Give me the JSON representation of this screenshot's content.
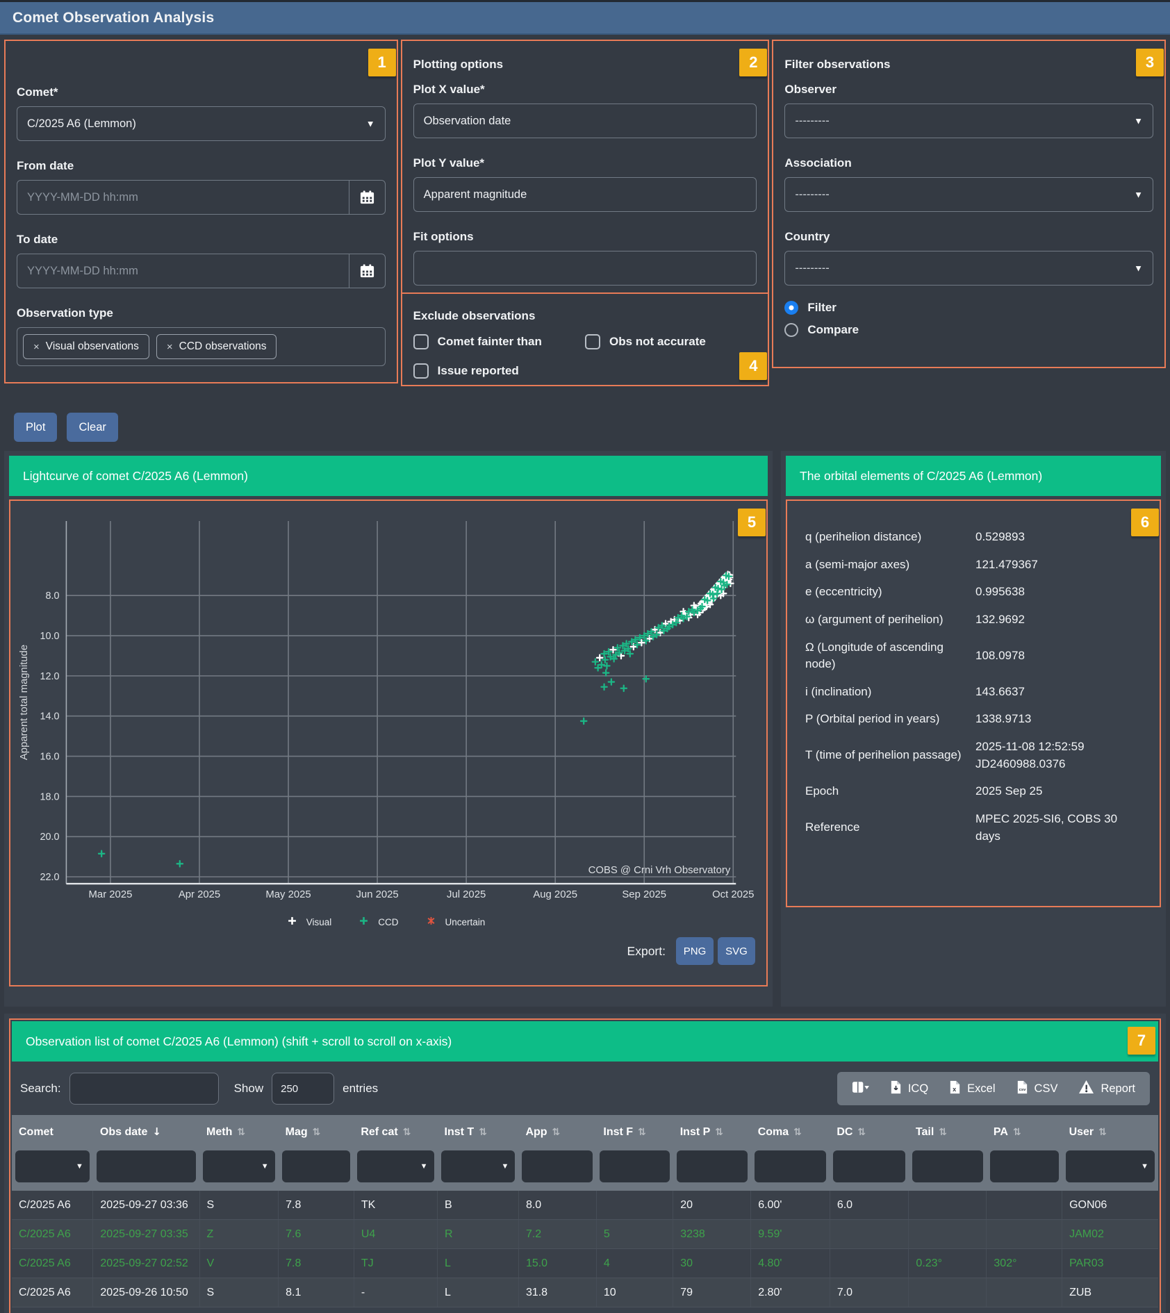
{
  "title": "Comet Observation Analysis",
  "colors": {
    "header_blue": "#47688f",
    "accent_orange": "#e87b57",
    "badge_yellow": "#efae16",
    "green_bar": "#0dbd87",
    "button_blue": "#4a6b9d",
    "ccd_row_green": "#3ea24b",
    "visual_marker": "#ffffff",
    "ccd_marker": "#1cb585",
    "uncertain_marker": "#e0543f"
  },
  "panels": {
    "comet": {
      "badge": "1",
      "comet_label": "Comet*",
      "comet_value": "C/2025 A6 (Lemmon)",
      "from_label": "From date",
      "to_label": "To date",
      "date_placeholder": "YYYY-MM-DD hh:mm",
      "obs_type_label": "Observation type",
      "tags": [
        "Visual observations",
        "CCD observations"
      ]
    },
    "plotting": {
      "badge": "2",
      "title": "Plotting options",
      "x_label": "Plot X value*",
      "x_value": "Observation date",
      "y_label": "Plot Y value*",
      "y_value": "Apparent magnitude",
      "fit_label": "Fit options",
      "fit_value": ""
    },
    "exclude": {
      "badge": "4",
      "title": "Exclude observations",
      "checkboxes": [
        {
          "label": "Comet fainter than",
          "checked": false
        },
        {
          "label": "Obs not accurate",
          "checked": false
        },
        {
          "label": "Issue reported",
          "checked": false
        }
      ]
    },
    "filter": {
      "badge": "3",
      "title": "Filter observations",
      "fields": [
        {
          "label": "Observer",
          "value": "---------"
        },
        {
          "label": "Association",
          "value": "---------"
        },
        {
          "label": "Country",
          "value": "---------"
        }
      ],
      "radios": [
        {
          "label": "Filter",
          "checked": true
        },
        {
          "label": "Compare",
          "checked": false
        }
      ]
    }
  },
  "actions": {
    "plot": "Plot",
    "clear": "Clear"
  },
  "lightcurve": {
    "badge": "5",
    "header": "Lightcurve of comet C/2025 A6 (Lemmon)",
    "watermark": "COBS @ Crni Vrh Observatory",
    "export_label": "Export:",
    "export_buttons": [
      "PNG",
      "SVG"
    ]
  },
  "chart_data": {
    "type": "scatter",
    "title": "Lightcurve of comet C/2025 A6 (Lemmon)",
    "ylabel": "Apparent total magnitude",
    "y_ticks": [
      8,
      10,
      12,
      14,
      16,
      18,
      20,
      22
    ],
    "y_range": [
      6.1,
      22.3
    ],
    "y_inverted": true,
    "x_tick_labels": [
      "Mar 2025",
      "Apr 2025",
      "May 2025",
      "Jun 2025",
      "Jul 2025",
      "Aug 2025",
      "Sep 2025",
      "Oct 2025"
    ],
    "x_unit": "month index, 0 = Mar 2025 tick",
    "grid": true,
    "legend_position": "bottom",
    "legend": [
      {
        "name": "Visual",
        "color": "#ffffff",
        "marker": "plus"
      },
      {
        "name": "CCD",
        "color": "#1cb585",
        "marker": "plus"
      },
      {
        "name": "Uncertain",
        "color": "#e0543f",
        "marker": "star"
      }
    ],
    "series": [
      {
        "name": "Visual",
        "points": [
          [
            5.5,
            11.1
          ],
          [
            5.65,
            10.7
          ],
          [
            5.74,
            11.0
          ],
          [
            5.88,
            10.55
          ],
          [
            5.97,
            10.35
          ],
          [
            6.06,
            10.15
          ],
          [
            6.12,
            9.7
          ],
          [
            6.18,
            9.85
          ],
          [
            6.24,
            9.4
          ],
          [
            6.3,
            9.3
          ],
          [
            6.34,
            9.2
          ],
          [
            6.4,
            9.25
          ],
          [
            6.46,
            8.9
          ],
          [
            6.52,
            8.95
          ],
          [
            6.58,
            8.6
          ],
          [
            6.62,
            8.5
          ],
          [
            6.64,
            8.4
          ],
          [
            6.66,
            8.3
          ],
          [
            6.67,
            8.45
          ],
          [
            6.69,
            8.35
          ],
          [
            6.7,
            8.1
          ],
          [
            6.72,
            8.0
          ],
          [
            6.73,
            8.15
          ],
          [
            6.75,
            8.05
          ],
          [
            6.76,
            7.8
          ],
          [
            6.78,
            7.7
          ],
          [
            6.79,
            7.85
          ],
          [
            6.81,
            7.75
          ],
          [
            6.82,
            7.5
          ],
          [
            6.84,
            7.4
          ],
          [
            6.85,
            7.55
          ],
          [
            6.87,
            7.45
          ],
          [
            6.88,
            7.2
          ],
          [
            6.9,
            7.1
          ],
          [
            6.91,
            7.25
          ],
          [
            6.93,
            7.15
          ],
          [
            6.94,
            6.95
          ],
          [
            6.88,
            7.6
          ],
          [
            6.92,
            7.35
          ],
          [
            6.85,
            7.8
          ],
          [
            6.89,
            7.9
          ],
          [
            6.91,
            7.05
          ],
          [
            6.86,
            8.0
          ],
          [
            6.84,
            7.75
          ],
          [
            6.8,
            8.05
          ],
          [
            6.76,
            8.25
          ],
          [
            6.7,
            8.55
          ],
          [
            6.74,
            8.45
          ],
          [
            6.66,
            8.7
          ],
          [
            6.6,
            8.95
          ],
          [
            6.5,
            9.1
          ],
          [
            6.44,
            8.8
          ],
          [
            6.56,
            8.5
          ],
          [
            6.62,
            8.85
          ],
          [
            6.68,
            8.6
          ],
          [
            6.72,
            8.3
          ],
          [
            6.94,
            7.3
          ],
          [
            6.95,
            7.2
          ],
          [
            6.96,
            7.1
          ],
          [
            6.96,
            6.98
          ],
          [
            6.97,
            7.4
          ]
        ]
      },
      {
        "name": "CCD",
        "points": [
          [
            -0.1,
            20.85
          ],
          [
            0.78,
            21.35
          ],
          [
            5.32,
            14.25
          ],
          [
            5.55,
            12.55
          ],
          [
            5.63,
            12.3
          ],
          [
            5.77,
            12.62
          ],
          [
            6.02,
            12.15
          ],
          [
            5.57,
            11.85
          ],
          [
            5.45,
            11.3
          ],
          [
            5.48,
            11.6
          ],
          [
            5.52,
            11.45
          ],
          [
            5.55,
            10.9
          ],
          [
            5.56,
            11.2
          ],
          [
            5.58,
            11.5
          ],
          [
            5.6,
            10.8
          ],
          [
            5.62,
            11.05
          ],
          [
            5.66,
            11.15
          ],
          [
            5.68,
            10.95
          ],
          [
            5.7,
            10.6
          ],
          [
            5.72,
            10.85
          ],
          [
            5.76,
            10.5
          ],
          [
            5.78,
            10.75
          ],
          [
            5.8,
            10.4
          ],
          [
            5.82,
            10.65
          ],
          [
            5.84,
            10.9
          ],
          [
            5.86,
            10.3
          ],
          [
            5.9,
            10.2
          ],
          [
            5.92,
            10.45
          ],
          [
            5.95,
            10.1
          ],
          [
            6.0,
            10.0
          ],
          [
            6.02,
            10.25
          ],
          [
            6.04,
            9.9
          ],
          [
            6.08,
            9.8
          ],
          [
            6.1,
            10.05
          ],
          [
            6.14,
            9.95
          ],
          [
            6.16,
            9.6
          ],
          [
            6.2,
            9.5
          ],
          [
            6.22,
            9.75
          ],
          [
            6.26,
            9.65
          ],
          [
            6.28,
            9.55
          ],
          [
            6.32,
            9.45
          ],
          [
            6.36,
            9.35
          ],
          [
            6.38,
            9.1
          ],
          [
            6.42,
            9.0
          ],
          [
            6.44,
            9.15
          ],
          [
            6.48,
            9.05
          ],
          [
            6.5,
            8.8
          ],
          [
            6.54,
            8.7
          ],
          [
            6.56,
            8.85
          ],
          [
            6.6,
            8.75
          ],
          [
            6.63,
            8.65
          ],
          [
            6.65,
            8.55
          ],
          [
            6.68,
            8.2
          ],
          [
            6.71,
            8.25
          ],
          [
            6.74,
            7.9
          ],
          [
            6.77,
            7.95
          ],
          [
            6.8,
            7.6
          ],
          [
            6.83,
            7.65
          ],
          [
            6.86,
            7.3
          ],
          [
            6.89,
            7.35
          ],
          [
            6.92,
            7.0
          ],
          [
            6.95,
            7.05
          ],
          [
            6.9,
            7.5
          ],
          [
            6.93,
            7.45
          ],
          [
            6.87,
            7.7
          ],
          [
            6.82,
            7.9
          ],
          [
            6.78,
            8.15
          ]
        ]
      },
      {
        "name": "Uncertain",
        "points": []
      }
    ]
  },
  "orbital": {
    "badge": "6",
    "header": "The orbital elements of C/2025 A6 (Lemmon)",
    "rows": [
      {
        "label": "q (perihelion distance)",
        "value": "0.529893"
      },
      {
        "label": "a (semi-major axes)",
        "value": "121.479367"
      },
      {
        "label": "e (eccentricity)",
        "value": "0.995638"
      },
      {
        "label": "ω (argument of perihelion)",
        "value": "132.9692"
      },
      {
        "label": "Ω (Longitude of ascending node)",
        "value": "108.0978"
      },
      {
        "label": "i (inclination)",
        "value": "143.6637"
      },
      {
        "label": "P (Orbital period in years)",
        "value": "1338.9713"
      },
      {
        "label": "T (time of perihelion passage)",
        "value": "2025-11-08 12:52:59\nJD2460988.0376"
      },
      {
        "label": "Epoch",
        "value": "2025 Sep 25"
      },
      {
        "label": "Reference",
        "value": "MPEC 2025-SI6, COBS 30\ndays"
      }
    ]
  },
  "table": {
    "badge": "7",
    "header": "Observation list of comet C/2025 A6 (Lemmon) (shift + scroll to scroll on x-axis)",
    "search_label": "Search:",
    "search_value": "",
    "show_label": "Show",
    "show_value": "250",
    "entries_label": "entries",
    "toolbar": [
      {
        "icon": "column-visibility-icon",
        "label": ""
      },
      {
        "icon": "file-download-icon",
        "label": "ICQ"
      },
      {
        "icon": "file-excel-icon",
        "label": "Excel"
      },
      {
        "icon": "file-csv-icon",
        "label": "CSV"
      },
      {
        "icon": "warning-icon",
        "label": "Report"
      }
    ],
    "columns": [
      {
        "label": "Comet",
        "sort": "none",
        "filter": "select",
        "width": 7.1
      },
      {
        "label": "Obs date",
        "sort": "desc",
        "filter": "input",
        "width": 9.3
      },
      {
        "label": "Meth",
        "sort": "both",
        "filter": "select",
        "width": 6.9
      },
      {
        "label": "Mag",
        "sort": "both",
        "filter": "input",
        "width": 6.6
      },
      {
        "label": "Ref cat",
        "sort": "both",
        "filter": "select",
        "width": 7.3
      },
      {
        "label": "Inst T",
        "sort": "both",
        "filter": "select",
        "width": 7.1
      },
      {
        "label": "App",
        "sort": "both",
        "filter": "input",
        "width": 6.8
      },
      {
        "label": "Inst F",
        "sort": "both",
        "filter": "input",
        "width": 6.7
      },
      {
        "label": "Inst P",
        "sort": "both",
        "filter": "input",
        "width": 6.8
      },
      {
        "label": "Coma",
        "sort": "both",
        "filter": "input",
        "width": 6.9
      },
      {
        "label": "DC",
        "sort": "both",
        "filter": "input",
        "width": 6.9
      },
      {
        "label": "Tail",
        "sort": "both",
        "filter": "input",
        "width": 6.8
      },
      {
        "label": "PA",
        "sort": "both",
        "filter": "input",
        "width": 6.6
      },
      {
        "label": "User",
        "sort": "both",
        "filter": "select",
        "width": 8.4
      }
    ],
    "rows": [
      {
        "type": "visual",
        "cells": [
          "C/2025 A6",
          "2025-09-27 03:36",
          "S",
          "7.8",
          "TK",
          "B",
          "8.0",
          "",
          "20",
          "6.00'",
          "6.0",
          "",
          "",
          "GON06"
        ]
      },
      {
        "type": "ccd",
        "cells": [
          "C/2025 A6",
          "2025-09-27 03:35",
          "Z",
          "7.6",
          "U4",
          "R",
          "7.2",
          "5",
          "3238",
          "9.59'",
          "",
          "",
          "",
          "JAM02"
        ]
      },
      {
        "type": "ccd",
        "cells": [
          "C/2025 A6",
          "2025-09-27 02:52",
          "V",
          "7.8",
          "TJ",
          "L",
          "15.0",
          "4",
          "30",
          "4.80'",
          "",
          "0.23°",
          "302°",
          "PAR03"
        ]
      },
      {
        "type": "visual",
        "cells": [
          "C/2025 A6",
          "2025-09-26 10:50",
          "S",
          "8.1",
          "-",
          "L",
          "31.8",
          "10",
          "79",
          "2.80'",
          "7.0",
          "",
          "",
          "ZUB"
        ]
      }
    ]
  }
}
